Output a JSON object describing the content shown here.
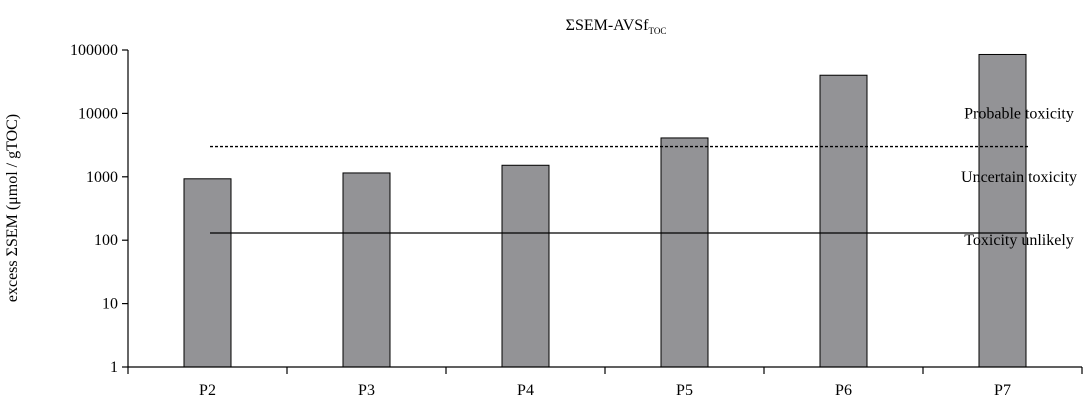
{
  "chart_data": {
    "type": "bar",
    "title": "ΣSEM-AVSf",
    "title_subscript": "TOC",
    "ylabel": "excess ΣSEM (μmol / gTOC)",
    "xlabel": "",
    "y_scale": "log",
    "ylim": [
      1,
      100000
    ],
    "y_ticks": [
      "1",
      "10",
      "100",
      "1000",
      "10000",
      "100000"
    ],
    "categories": [
      "P2",
      "P3",
      "P4",
      "P5",
      "P6",
      "P7"
    ],
    "values": [
      930,
      1150,
      1520,
      4100,
      40000,
      85000
    ],
    "bar_color": "#939396",
    "thresholds": [
      {
        "name": "solid",
        "value": 130,
        "style": "solid"
      },
      {
        "name": "dashed",
        "value": 3000,
        "style": "dashed"
      }
    ],
    "annotations": [
      {
        "text": "Probable toxicity",
        "y": 10000
      },
      {
        "text": "Uncertain toxicity",
        "y": 1000
      },
      {
        "text": "Toxicity unlikely",
        "y": 100
      }
    ],
    "grid": false,
    "legend": "none"
  }
}
